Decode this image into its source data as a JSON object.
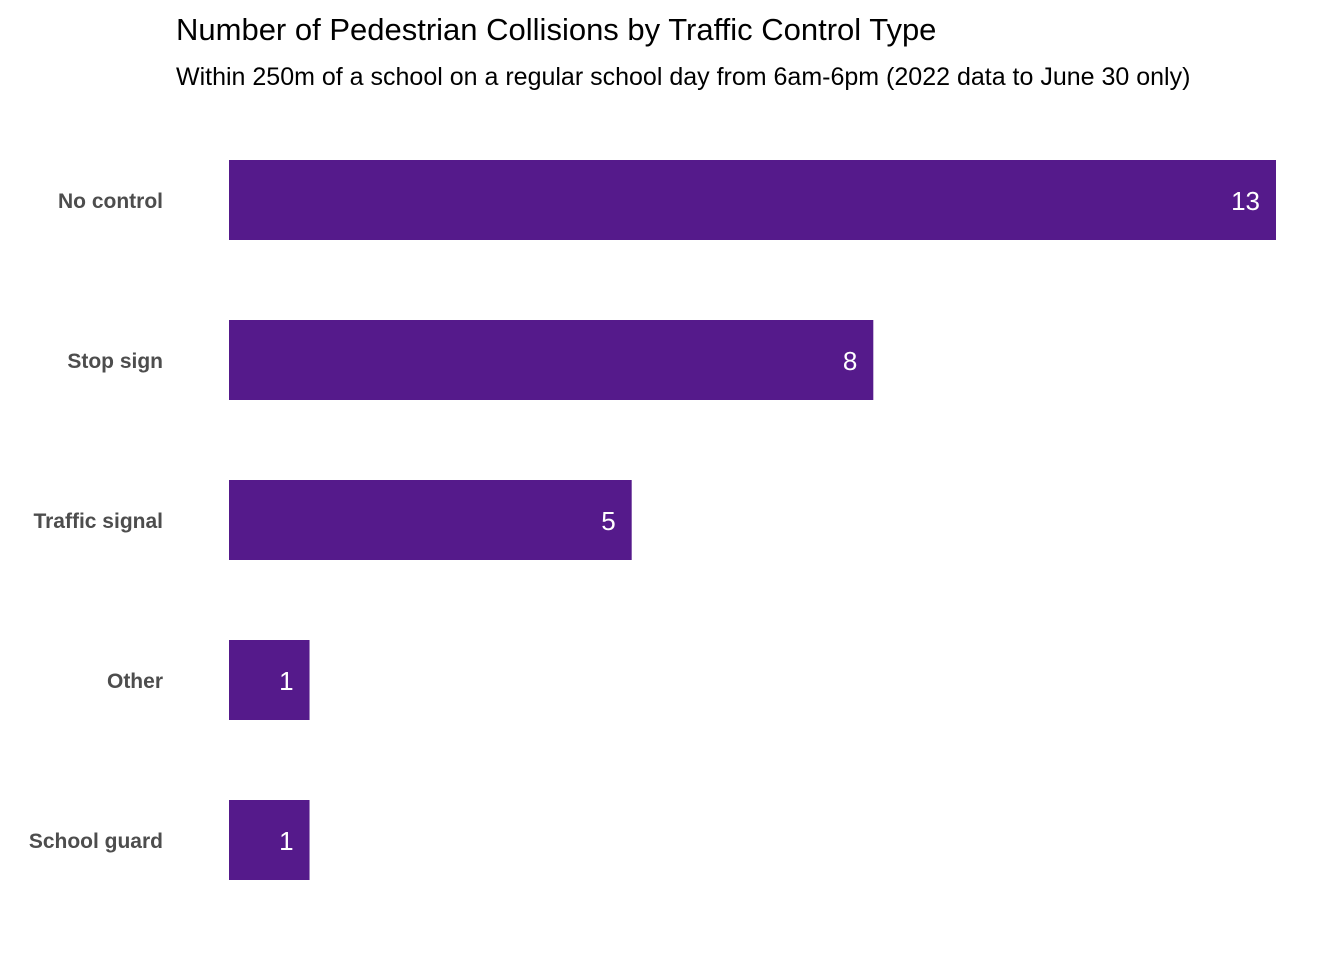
{
  "chart_data": {
    "type": "bar",
    "orientation": "horizontal",
    "title": "Number of Pedestrian Collisions by Traffic Control Type",
    "subtitle": "Within 250m of a school on a regular school day from 6am-6pm (2022 data to June 30 only)",
    "categories": [
      "No control",
      "Stop sign",
      "Traffic signal",
      "Other",
      "School guard"
    ],
    "values": [
      13,
      8,
      5,
      1,
      1
    ],
    "xlim": [
      0,
      13
    ],
    "xlabel": "",
    "ylabel": "",
    "grid": false,
    "legend": "none",
    "data_labels": true,
    "bar_color": "#551a8b",
    "label_color": "#ffffff",
    "axis_text_color": "#4d4d4d"
  }
}
